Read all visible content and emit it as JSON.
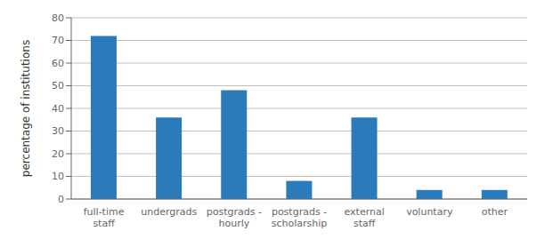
{
  "chart_data": {
    "type": "bar",
    "categories": [
      "full-time\nstaff",
      "undergrads",
      "postgrads -\nhourly",
      "postgrads -\nscholarship",
      "external\nstaff",
      "voluntary",
      "other"
    ],
    "values": [
      72,
      36,
      48,
      8,
      36,
      4,
      4
    ],
    "color": "#2b7bba",
    "ylabel": "percentage of institutions",
    "ylim": [
      0,
      80
    ],
    "yticks": [
      0,
      10,
      20,
      30,
      40,
      50,
      60,
      70,
      80
    ],
    "grid": true
  }
}
